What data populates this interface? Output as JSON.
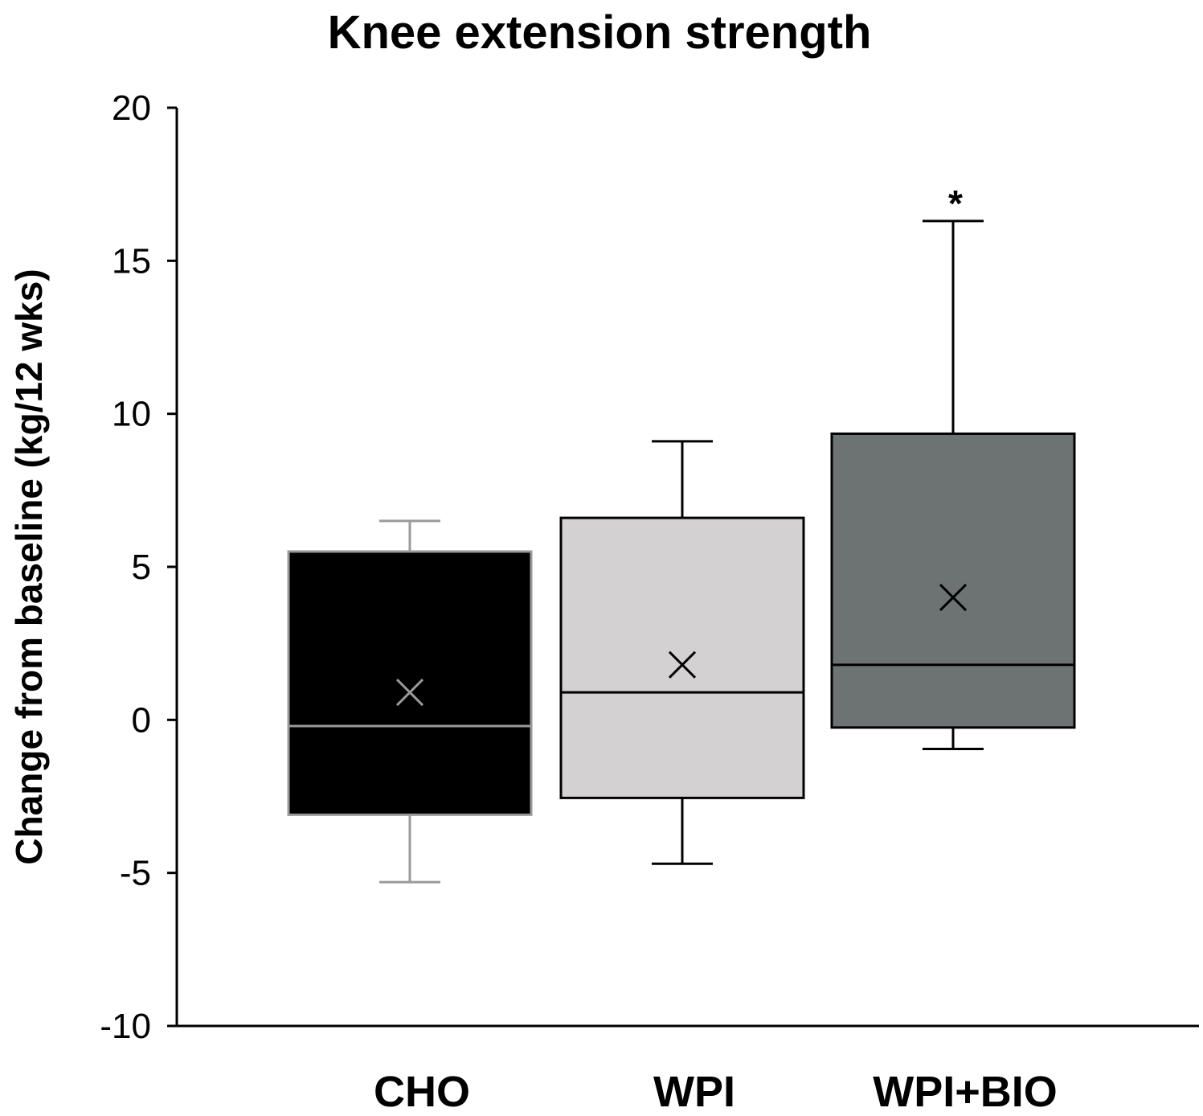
{
  "chart_data": {
    "type": "box",
    "title": "Knee extension strength",
    "xlabel": "",
    "ylabel": "Change from baseline (kg/12 wks)",
    "ylim": [
      -10,
      20
    ],
    "yticks": [
      "-10",
      "-5",
      "0",
      "5",
      "10",
      "15",
      "20"
    ],
    "ytick_values": [
      -10,
      -5,
      0,
      5,
      10,
      15,
      20
    ],
    "categories": [
      "CHO",
      "WPI",
      "WPI+BIO"
    ],
    "grid": false,
    "boxes": [
      {
        "category": "CHO",
        "whisker_low": -5.3,
        "q1": -3.1,
        "median": -0.2,
        "q3": 5.5,
        "whisker_high": 6.5,
        "mean": 0.9,
        "fill": "#000000",
        "line": "#9a9a9a",
        "annotation": ""
      },
      {
        "category": "WPI",
        "whisker_low": -4.7,
        "q1": -2.55,
        "median": 0.9,
        "q3": 6.6,
        "whisker_high": 9.1,
        "mean": 1.8,
        "fill": "#d4d1d2",
        "line": "#000000",
        "annotation": ""
      },
      {
        "category": "WPI+BIO",
        "whisker_low": -0.95,
        "q1": -0.25,
        "median": 1.8,
        "q3": 9.35,
        "whisker_high": 16.3,
        "mean": 4.0,
        "fill": "#6d7372",
        "line": "#000000",
        "annotation": "*"
      }
    ]
  }
}
